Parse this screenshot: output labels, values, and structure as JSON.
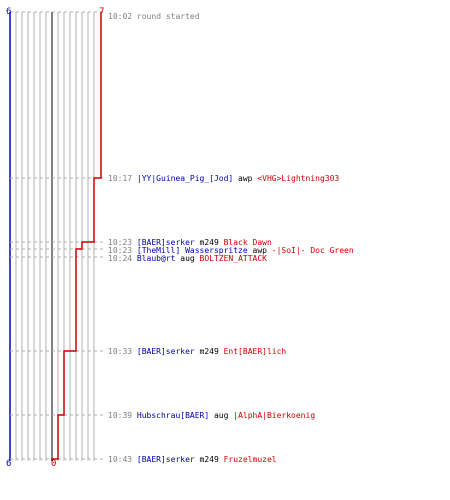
{
  "colors": {
    "blue_team": "#0000cc",
    "red_team": "#cc0000",
    "grid": "#b0b0b0",
    "time": "#808080",
    "center_line": "#808080"
  },
  "scores": {
    "blue_top": "6",
    "red_top": "7",
    "blue_bottom": "6",
    "red_bottom": "0"
  },
  "timeline": {
    "start_time": "10:02",
    "start_label": "round started",
    "blue_score_steps": [
      {
        "time": "10:02",
        "score": 6
      },
      {
        "time": "10:43",
        "score": 6
      }
    ],
    "red_score_steps": [
      {
        "time": "10:02",
        "score": 7
      },
      {
        "time": "10:17",
        "score": 6
      },
      {
        "time": "10:23",
        "score": 5
      },
      {
        "time": "10:23",
        "score": 4
      },
      {
        "time": "10:24",
        "score": 3
      },
      {
        "time": "10:33",
        "score": 2
      },
      {
        "time": "10:39",
        "score": 1
      },
      {
        "time": "10:43",
        "score": 0
      }
    ]
  },
  "events": [
    {
      "time": "10:17",
      "killer": "|YY|Guinea_Pig_[Jod]",
      "weapon": "awp",
      "victim": "<VHG>Lightning303"
    },
    {
      "time": "10:23",
      "killer": "[BAER]serker",
      "weapon": "m249",
      "victim": "Black Dawn"
    },
    {
      "time": "10:23",
      "killer": "[TheMill] Wasserspritze",
      "weapon": "awp",
      "victim": "-|SoI|- Doc Green"
    },
    {
      "time": "10:24",
      "killer": "Blaub@rt",
      "weapon": "aug",
      "victim": "BOLTZEN_ATTACK"
    },
    {
      "time": "10:33",
      "killer": "[BAER]serker",
      "weapon": "m249",
      "victim": "Ent[BAER]lich"
    },
    {
      "time": "10:39",
      "killer": "Hubschrau[BAER]",
      "weapon": "aug",
      "victim": "|AlphA|Bierkoenig"
    },
    {
      "time": "10:43",
      "killer": "[BAER]serker",
      "weapon": "m249",
      "victim": "Fruzelmuzel"
    }
  ]
}
